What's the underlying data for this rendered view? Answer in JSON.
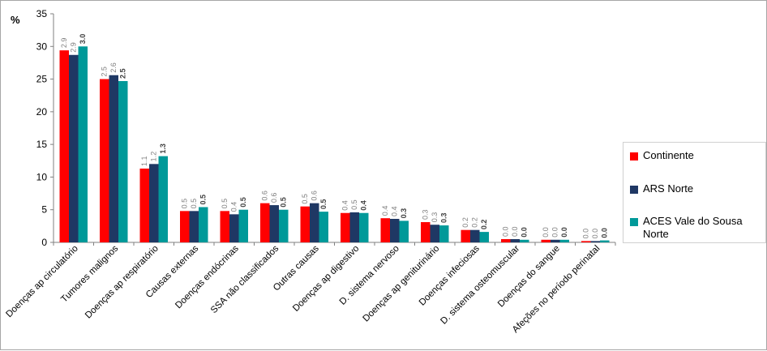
{
  "chart_data": {
    "type": "bar",
    "ylabel": "%",
    "ylim": [
      0,
      35
    ],
    "yticks": [
      0,
      5,
      10,
      15,
      20,
      25,
      30,
      35
    ],
    "grid": false,
    "legend_position": "right",
    "categories": [
      "Doenças ap circulatório",
      "Tumores malignos",
      "Doenças ap respiratório",
      "Causas externas",
      "Doenças endócrinas",
      "SSA não classificados",
      "Outras causas",
      "Doenças ap digestivo",
      "D. sistema nervoso",
      "Doenças ap geniturinário",
      "Doenças infeciosas",
      "D. sistema osteomuscular",
      "Doenças do sangue",
      "Afeções no período perinatal"
    ],
    "series": [
      {
        "name": "Continente",
        "color": "#ff0000",
        "values": [
          29.4,
          25.0,
          11.3,
          4.8,
          4.8,
          6.0,
          5.5,
          4.5,
          3.7,
          3.1,
          1.9,
          0.5,
          0.4,
          0.2
        ],
        "labels": [
          "2.9",
          "2.5",
          "1.1",
          "0.5",
          "0.5",
          "0.6",
          "0.5",
          "0.4",
          "0.4",
          "0.3",
          "0.2",
          "0.0",
          "0.0",
          "0.0"
        ]
      },
      {
        "name": "ARS Norte",
        "color": "#1f3864",
        "values": [
          28.7,
          25.6,
          12.0,
          4.8,
          4.3,
          5.7,
          6.0,
          4.6,
          3.6,
          2.7,
          1.9,
          0.5,
          0.4,
          0.2
        ],
        "labels": [
          "2.9",
          "2.6",
          "1.2",
          "0.5",
          "0.4",
          "0.6",
          "0.6",
          "0.5",
          "0.4",
          "0.3",
          "0.2",
          "0.0",
          "0.0",
          "0.0"
        ]
      },
      {
        "name": "ACES Vale do Sousa Norte",
        "color": "#009999",
        "values": [
          30.0,
          24.7,
          13.2,
          5.4,
          5.0,
          5.0,
          4.7,
          4.5,
          3.3,
          2.6,
          1.6,
          0.4,
          0.4,
          0.3
        ],
        "labels": [
          "3.0",
          "2.5",
          "1.3",
          "0.5",
          "0.5",
          "0.5",
          "0.5",
          "0.4",
          "0.3",
          "0.3",
          "0.2",
          "0.0",
          "0.0",
          "0.0"
        ]
      }
    ]
  },
  "legend": {
    "items": [
      "Continente",
      "ARS Norte",
      "ACES Vale do Sousa Norte"
    ]
  }
}
